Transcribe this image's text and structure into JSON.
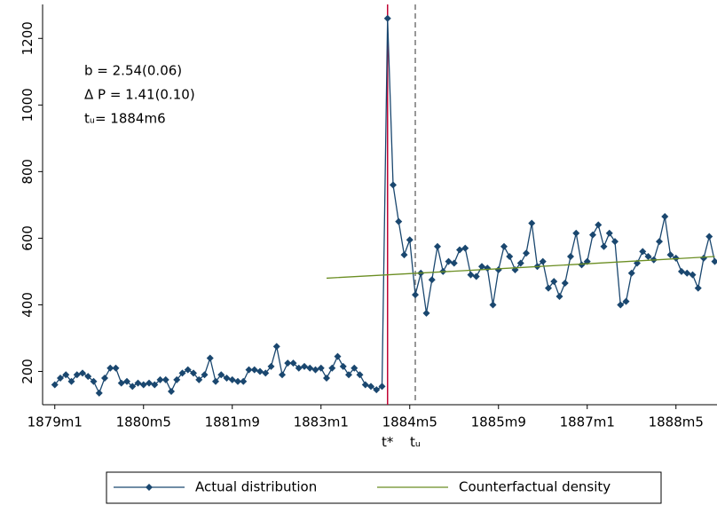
{
  "chart_data": {
    "type": "line",
    "x": [
      0,
      1,
      2,
      3,
      4,
      5,
      6,
      7,
      8,
      9,
      10,
      11,
      12,
      13,
      14,
      15,
      16,
      17,
      18,
      19,
      20,
      21,
      22,
      23,
      24,
      25,
      26,
      27,
      28,
      29,
      30,
      31,
      32,
      33,
      34,
      35,
      36,
      37,
      38,
      39,
      40,
      41,
      42,
      43,
      44,
      45,
      46,
      47,
      48,
      49,
      50,
      51,
      52,
      53,
      54,
      55,
      56,
      57,
      58,
      59,
      60,
      61,
      62,
      63,
      64,
      65,
      66,
      67,
      68,
      69,
      70,
      71,
      72,
      73,
      74,
      75,
      76,
      77,
      78,
      79,
      80,
      81,
      82,
      83,
      84,
      85,
      86,
      87,
      88,
      89,
      90,
      91,
      92,
      93,
      94,
      95,
      96,
      97,
      98,
      99,
      100,
      101,
      102,
      103,
      104,
      105,
      106,
      107,
      108,
      109,
      110,
      111,
      112,
      113,
      114,
      115,
      116,
      117,
      118,
      119
    ],
    "series": [
      {
        "name": "Actual distribution",
        "color": "#1a476f",
        "markers": true,
        "values": [
          160,
          180,
          190,
          170,
          190,
          195,
          185,
          170,
          135,
          180,
          210,
          210,
          165,
          170,
          155,
          165,
          160,
          165,
          160,
          175,
          175,
          140,
          175,
          195,
          205,
          195,
          175,
          190,
          240,
          170,
          190,
          180,
          175,
          170,
          170,
          205,
          205,
          200,
          195,
          215,
          275,
          190,
          225,
          225,
          210,
          215,
          210,
          205,
          210,
          180,
          210,
          245,
          215,
          190,
          210,
          190,
          160,
          155,
          145,
          155,
          1260,
          760,
          650,
          550,
          595,
          430,
          495,
          375,
          475,
          575,
          500,
          530,
          525,
          565,
          570,
          490,
          485,
          515,
          510,
          400,
          505,
          575,
          545,
          505,
          525,
          555,
          645,
          515,
          530,
          450,
          470,
          425,
          465,
          545,
          615,
          520,
          530,
          610,
          640,
          575,
          615,
          590,
          400,
          410,
          495,
          525,
          560,
          545,
          535,
          590,
          665,
          550,
          540,
          500,
          495,
          490,
          450,
          540,
          605,
          530
        ]
      },
      {
        "name": "Counterfactual density",
        "color": "#6b8e23",
        "markers": false,
        "x": [
          49,
          84,
          119
        ],
        "values": [
          480,
          512,
          545
        ]
      }
    ],
    "annotations": [
      "b =  2.54(0.06)",
      "Δ P = 1.41(0.10)",
      "tᵤ=  1884m6"
    ],
    "vlines": [
      {
        "x": 60,
        "label": "t*",
        "color": "#c10534",
        "dashed": false
      },
      {
        "x": 65,
        "label": "tᵤ",
        "color": "#777777",
        "dashed": true
      }
    ],
    "xlim": [
      -2.2,
      119.4
    ],
    "ylim": [
      100,
      1302
    ],
    "xticks": [
      {
        "value": 0,
        "label": "1879m1"
      },
      {
        "value": 16,
        "label": "1880m5"
      },
      {
        "value": 32,
        "label": "1881m9"
      },
      {
        "value": 48,
        "label": "1883m1"
      },
      {
        "value": 64,
        "label": "1884m5"
      },
      {
        "value": 80,
        "label": "1885m9"
      },
      {
        "value": 96,
        "label": "1887m1"
      },
      {
        "value": 112,
        "label": "1888m5"
      }
    ],
    "yticks": [
      200,
      400,
      600,
      800,
      1000,
      1200
    ]
  }
}
